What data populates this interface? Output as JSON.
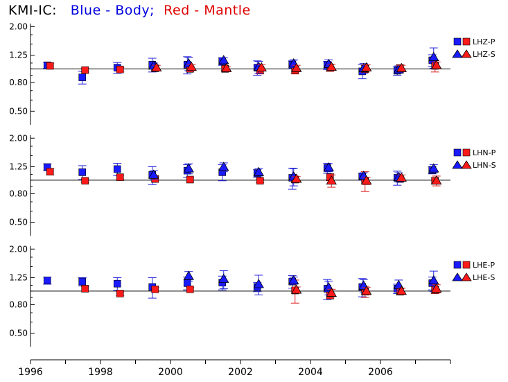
{
  "title": {
    "station": "KMI-IC:",
    "blue": "Blue - Body;",
    "red": "Red - Mantle"
  },
  "colors": {
    "body": "#1a1aff",
    "mantle": "#ff1a1a",
    "err_body": "#2020dd",
    "err_mantle": "#dd2020"
  },
  "chart_data": {
    "type": "scatter",
    "x_ticks": [
      1996,
      1998,
      2000,
      2002,
      2004,
      2006
    ],
    "xlim": [
      1996,
      2008
    ],
    "yscale": "log",
    "ylim": [
      0.4,
      2.1
    ],
    "y_ticks": [
      "2.00",
      "1.25",
      "0.80",
      "0.50"
    ],
    "reference_line": 1.0,
    "x": [
      1996.5,
      1997.5,
      1998.5,
      1999.5,
      2000.5,
      2001.5,
      2002.5,
      2003.5,
      2004.5,
      2005.5,
      2006.5,
      2007.5
    ],
    "panels": [
      {
        "legend": [
          "LHZ-P",
          "LHZ-S"
        ],
        "series": [
          {
            "kind": "P",
            "group": "body",
            "y": [
              1.06,
              0.87,
              1.02,
              1.07,
              1.07,
              1.13,
              1.02,
              1.07,
              1.06,
              0.96,
              0.97,
              1.15
            ],
            "err": [
              0.05,
              0.09,
              0.09,
              0.12,
              0.15,
              0.07,
              0.12,
              0.07,
              0.07,
              0.11,
              0.07,
              0.11
            ]
          },
          {
            "kind": "P",
            "group": "mantle",
            "y": [
              1.05,
              0.98,
              0.99,
              1.01,
              1.0,
              1.0,
              0.98,
              0.98,
              1.02,
              1.0,
              1.01,
              1.05
            ],
            "err": [
              0.05,
              0.03,
              0.03,
              0.04,
              0.04,
              0.03,
              0.06,
              0.06,
              0.06,
              0.06,
              0.06,
              0.1
            ]
          },
          {
            "kind": "S",
            "group": "body",
            "y": [
              null,
              null,
              null,
              1.05,
              1.09,
              1.15,
              1.03,
              1.09,
              1.08,
              1.01,
              0.99,
              1.21
            ],
            "err": [
              0,
              0,
              0,
              0.05,
              0.12,
              0.05,
              0.1,
              0.07,
              0.08,
              0.08,
              0.06,
              0.2
            ]
          },
          {
            "kind": "S",
            "group": "mantle",
            "y": [
              null,
              null,
              null,
              1.02,
              1.03,
              1.01,
              1.02,
              1.01,
              1.03,
              1.02,
              1.01,
              1.06
            ],
            "err": [
              0,
              0,
              0,
              0.04,
              0.04,
              0.03,
              0.05,
              0.05,
              0.05,
              0.05,
              0.05,
              0.06
            ]
          }
        ]
      },
      {
        "legend": [
          "LHN-P",
          "LHN-S"
        ],
        "series": [
          {
            "kind": "P",
            "group": "body",
            "y": [
              1.24,
              1.14,
              1.2,
              1.09,
              1.17,
              1.14,
              1.12,
              1.04,
              1.22,
              1.06,
              1.04,
              1.18
            ],
            "err": [
              0.07,
              0.13,
              0.12,
              0.16,
              0.12,
              0.15,
              0.07,
              0.18,
              0.1,
              0.06,
              0.12,
              0.07
            ]
          },
          {
            "kind": "P",
            "group": "mantle",
            "y": [
              1.15,
              0.99,
              1.05,
              1.02,
              1.01,
              null,
              0.99,
              1.01,
              1.05,
              0.99,
              1.02,
              0.99
            ],
            "err": [
              0.06,
              0.03,
              0.04,
              0.05,
              0.04,
              0,
              0.03,
              0.05,
              0.06,
              0.16,
              0.04,
              0.05
            ]
          },
          {
            "kind": "S",
            "group": "body",
            "y": [
              null,
              null,
              null,
              1.09,
              1.21,
              1.24,
              1.14,
              1.06,
              1.23,
              1.07,
              1.05,
              1.21
            ],
            "err": [
              0,
              0,
              0,
              0.08,
              0.1,
              0.09,
              0.07,
              0.15,
              0.08,
              0.06,
              0.08,
              0.08
            ]
          },
          {
            "kind": "S",
            "group": "mantle",
            "y": [
              null,
              null,
              null,
              null,
              null,
              null,
              null,
              1.02,
              0.99,
              0.99,
              1.04,
              0.99
            ],
            "err": [
              0,
              0,
              0,
              0,
              0,
              0,
              0,
              0.04,
              0.1,
              0.06,
              0.05,
              0.08
            ]
          }
        ]
      },
      {
        "legend": [
          "LHE-P",
          "LHE-S"
        ],
        "series": [
          {
            "kind": "P",
            "group": "body",
            "y": [
              1.19,
              1.17,
              1.13,
              1.07,
              1.14,
              1.15,
              1.07,
              1.17,
              1.04,
              1.07,
              1.04,
              1.14
            ],
            "err": [
              0.07,
              0.08,
              0.12,
              0.18,
              0.12,
              0.13,
              0.08,
              0.12,
              0.17,
              0.16,
              0.08,
              0.12
            ]
          },
          {
            "kind": "P",
            "group": "mantle",
            "y": [
              null,
              1.04,
              0.96,
              1.03,
              1.03,
              null,
              null,
              1.01,
              0.93,
              0.99,
              0.99,
              1.02
            ],
            "err": [
              0,
              0.04,
              0.03,
              0.03,
              0.03,
              0,
              0,
              0.19,
              0.05,
              0.09,
              0.05,
              0.06
            ]
          },
          {
            "kind": "S",
            "group": "body",
            "y": [
              null,
              null,
              null,
              null,
              1.28,
              1.22,
              1.12,
              1.19,
              1.06,
              1.09,
              1.1,
              1.19
            ],
            "err": [
              0,
              0,
              0,
              0,
              0.1,
              0.18,
              0.18,
              0.07,
              0.12,
              0.12,
              0.1,
              0.2
            ]
          },
          {
            "kind": "S",
            "group": "mantle",
            "y": [
              null,
              null,
              null,
              null,
              null,
              null,
              null,
              1.02,
              0.97,
              1.0,
              1.0,
              1.04
            ],
            "err": [
              0,
              0,
              0,
              0,
              0,
              0,
              0,
              0.05,
              0.06,
              0.06,
              0.05,
              0.07
            ]
          }
        ]
      }
    ]
  }
}
